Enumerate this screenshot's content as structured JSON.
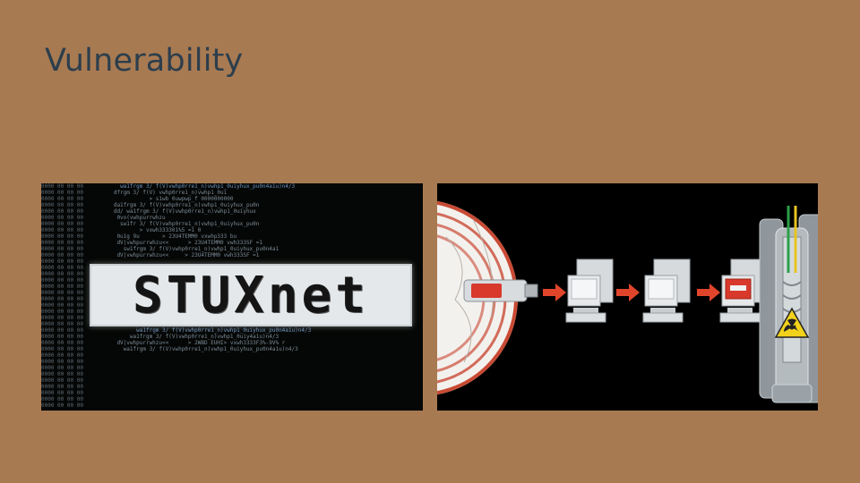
{
  "slide": {
    "title": "Vulnerability"
  },
  "left_image": {
    "logo_text": "STUXnet"
  },
  "right_image": {
    "steps": [
      "usb-drive",
      "computer",
      "computer",
      "infected-computer",
      "nuclear-centrifuge"
    ]
  },
  "colors": {
    "background": "#a87a52",
    "title": "#2c3e4c",
    "arrow": "#e0452b",
    "infected_screen": "#d8392b",
    "hazard": "#f2d21b"
  }
}
